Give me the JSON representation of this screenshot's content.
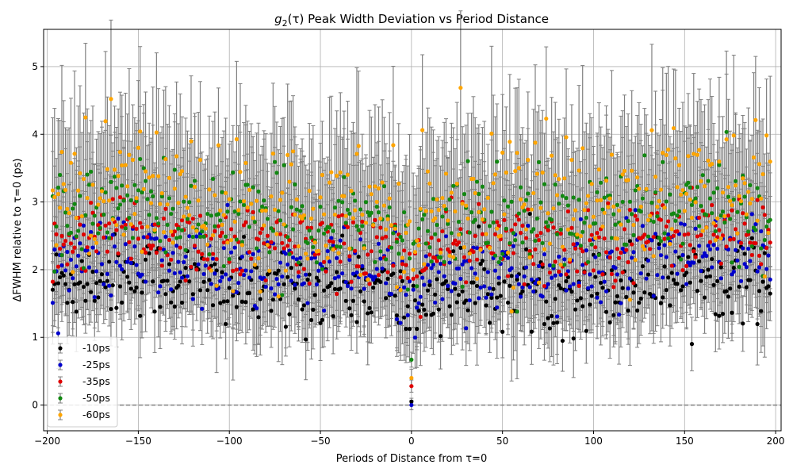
{
  "chart_data": {
    "type": "scatter",
    "title": "g2(τ) Peak Width Deviation vs Period Distance",
    "title_parts": {
      "g": "g",
      "sub": "2",
      "rest": "(τ) Peak Width Deviation vs Period Distance"
    },
    "xlabel": "Periods of Distance from τ=0",
    "ylabel": "ΔFWHM relative to τ=0 (ps)",
    "xlim": [
      -202,
      203
    ],
    "ylim": [
      -0.38,
      5.55
    ],
    "xticks": [
      -200,
      -150,
      -100,
      -50,
      0,
      50,
      100,
      150,
      200
    ],
    "yticks": [
      0,
      1,
      2,
      3,
      4,
      5
    ],
    "grid": true,
    "legend_position": "bottom-left",
    "reference_line": {
      "y": 0,
      "style": "dashed",
      "color": "#808080"
    },
    "x_range": [
      -197,
      197
    ],
    "error_bar_color": "#808080",
    "series": [
      {
        "name": "-10ps",
        "color": "#000000",
        "mean": 1.8,
        "spread": 0.3,
        "err": 0.5,
        "at_zero": 0.05
      },
      {
        "name": "-25ps",
        "color": "#0000cc",
        "mean": 2.05,
        "spread": 0.3,
        "err": 0.6,
        "at_zero": 0.0
      },
      {
        "name": "-35ps",
        "color": "#e00000",
        "mean": 2.45,
        "spread": 0.3,
        "err": 0.75,
        "at_zero": 0.28
      },
      {
        "name": "-50ps",
        "color": "#118811",
        "mean": 2.8,
        "spread": 0.35,
        "err": 0.85,
        "at_zero": 0.67
      },
      {
        "name": "-60ps",
        "color": "#ffa500",
        "mean": 3.05,
        "spread": 0.5,
        "err": 1.05,
        "at_zero": 0.4
      }
    ]
  }
}
